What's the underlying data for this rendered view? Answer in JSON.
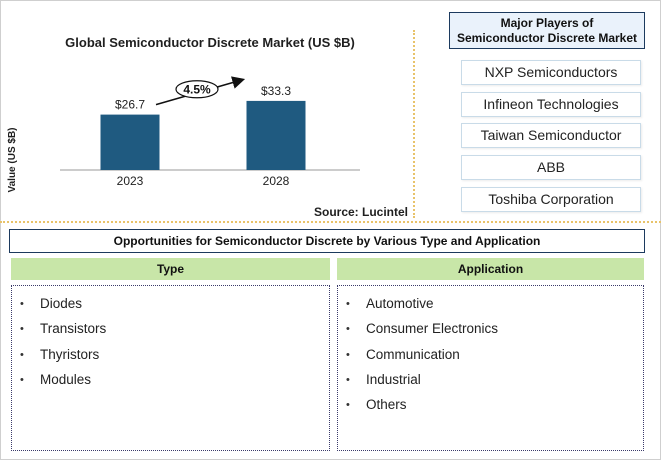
{
  "chart_data": {
    "type": "bar",
    "title": "Global Semiconductor Discrete Market (US $B)",
    "ylabel": "Value (US $B)",
    "xlabel": "",
    "categories": [
      "2023",
      "2028"
    ],
    "values": [
      26.7,
      33.3
    ],
    "value_labels": [
      "$26.7",
      "$33.3"
    ],
    "bar_color": "#1f5a80",
    "growth_annotation": "4.5%",
    "ylim": [
      0,
      40
    ],
    "grid": false
  },
  "source": "Source: Lucintel",
  "players": {
    "title_line1": "Major Players of",
    "title_line2": "Semiconductor Discrete Market",
    "items": [
      "NXP  Semiconductors",
      "Infineon Technologies",
      "Taiwan Semiconductor",
      "ABB",
      "Toshiba Corporation"
    ]
  },
  "opportunities": {
    "title": "Opportunities for Semiconductor Discrete by Various Type and Application",
    "type_header": "Type",
    "type_items": [
      "Diodes",
      "Transistors",
      "Thyristors",
      "Modules"
    ],
    "application_header": "Application",
    "application_items": [
      "Automotive",
      "Consumer Electronics",
      "Communication",
      "Industrial",
      "Others"
    ]
  }
}
